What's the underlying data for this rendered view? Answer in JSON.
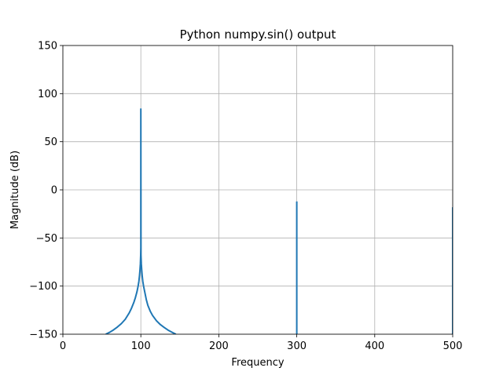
{
  "chart_data": {
    "type": "line",
    "title": "Python numpy.sin() output",
    "xlabel": "Frequency",
    "ylabel": "Magnitude (dB)",
    "xlim": [
      0,
      500
    ],
    "ylim": [
      -150,
      150
    ],
    "xticks": [
      0,
      100,
      200,
      300,
      400,
      500
    ],
    "yticks": [
      -150,
      -100,
      -50,
      0,
      50,
      100,
      150
    ],
    "xtick_labels": [
      "0",
      "100",
      "200",
      "300",
      "400",
      "500"
    ],
    "ytick_labels": [
      "−150",
      "−100",
      "−50",
      "0",
      "50",
      "100",
      "150"
    ],
    "grid": true,
    "color": "#1f77b4",
    "series": [
      {
        "x": [
          55,
          60,
          65,
          70,
          75,
          80,
          85,
          88,
          91,
          93,
          95,
          96.5,
          97.5,
          98.3,
          98.9,
          99.4,
          99.8,
          100,
          100,
          100.2,
          100.6,
          101.1,
          101.7,
          102.5,
          103.5,
          105,
          107,
          109,
          112,
          115,
          120,
          125,
          130,
          135,
          140,
          145
        ],
        "y": [
          -150,
          -148,
          -145.5,
          -142.5,
          -139,
          -134.5,
          -128,
          -123,
          -117,
          -112,
          -106,
          -100,
          -95,
          -89,
          -83,
          -77,
          -68,
          -60,
          84,
          -68,
          -77,
          -83,
          -89,
          -95,
          -100,
          -106,
          -114,
          -120,
          -126,
          -130.5,
          -136,
          -140,
          -143,
          -145.8,
          -148,
          -150
        ]
      },
      {
        "x": [
          300,
          300
        ],
        "y": [
          -150,
          -12
        ]
      },
      {
        "x": [
          500,
          500
        ],
        "y": [
          -150,
          -18
        ]
      }
    ]
  }
}
